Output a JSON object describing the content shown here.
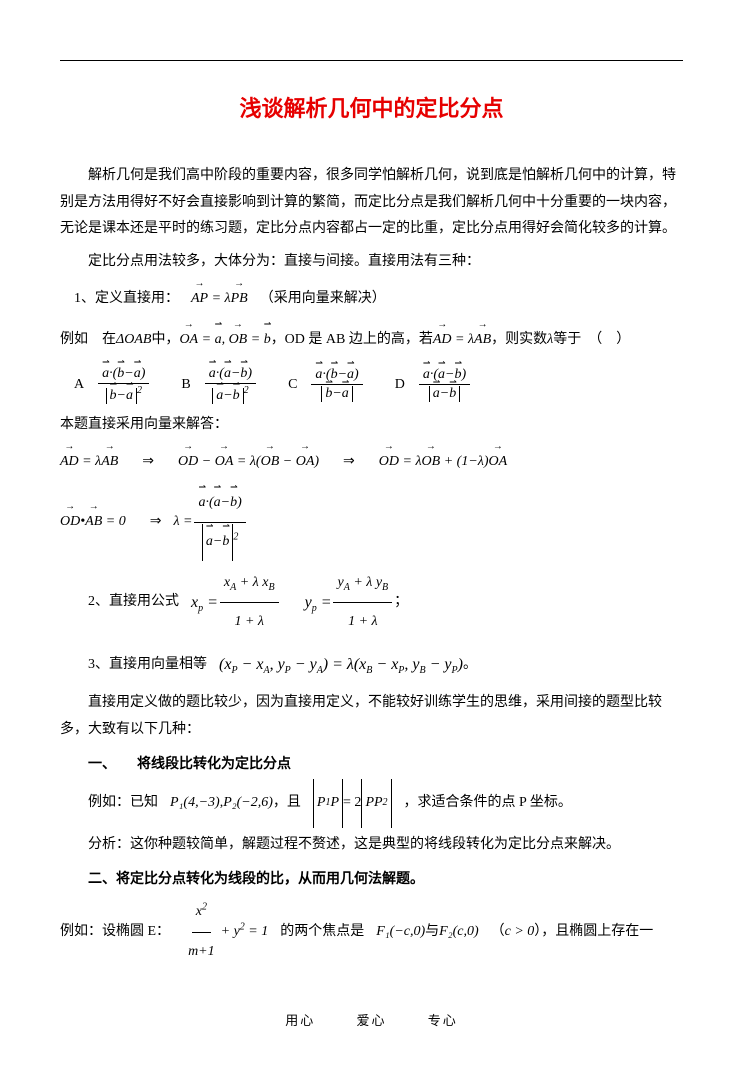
{
  "title": "浅谈解析几何中的定比分点",
  "intro1": "解析几何是我们高中阶段的重要内容，很多同学怕解析几何，说到底是怕解析几何中的计算，特别是方法用得好不好会直接影响到计算的繁简，而定比分点是我们解析几何中十分重要的一块内容，无论是课本还是平时的练习题，定比分点内容都占一定的比重，定比分点用得好会简化较多的计算。",
  "intro2": "定比分点用法较多，大体分为：直接与间接。直接用法有三种：",
  "method1_label": "1、定义直接用：",
  "method1_note": "（采用向量来解决）",
  "example1_prefix": "例如　在",
  "example1_mid1": "中，",
  "example1_mid2": "，OD 是 AB 边上的高，若",
  "example1_tail": "，则实数",
  "example1_end": "等于　（　）",
  "choice_labels": {
    "A": "A",
    "B": "B",
    "C": "C",
    "D": "D"
  },
  "solution_head": "本题直接采用向量来解答：",
  "method2_label": "2、直接用公式",
  "method3_label": "3、直接用向量相等",
  "direct_note": "直接用定义做的题比较少，因为直接用定义，不能较好训练学生的思维，采用间接的题型比较多，大致有以下几种：",
  "section1": "一、　　将线段比转化为定比分点",
  "ex_s1_prefix": "例如：已知",
  "ex_s1_mid": "，且",
  "ex_s1_tail": "，求适合条件的点 P 坐标。",
  "analysis": "分析：这你种题较简单，解题过程不赘述，这是典型的将线段转化为定比分点来解决。",
  "section2": "二、将定比分点转化为线段的比，从而用几何法解题。",
  "ex_s2_prefix": "例如：设椭圆 E：",
  "ex_s2_mid": "的两个焦点是",
  "ex_s2_and": "与",
  "ex_s2_tail1": "（",
  "ex_s2_tail2": "），且椭圆上存在一",
  "footer": {
    "a": "用心",
    "b": "爱心",
    "c": "专心"
  },
  "points": {
    "P1": "P₁(4,−3)",
    "P2": "P₂(−2,6)"
  },
  "foci": {
    "F1": "F₁(−c,0)",
    "F2": "F₂(c,0)",
    "cond": "c > 0"
  }
}
